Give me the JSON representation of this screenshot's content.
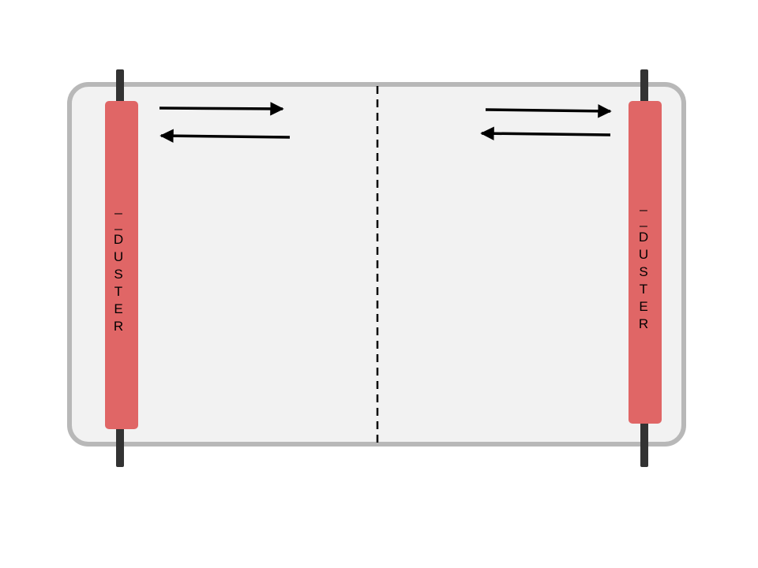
{
  "board": {
    "fill": "#f2f2f2",
    "border_color": "#b8b8b8",
    "divider_color": "#000000"
  },
  "dusters": [
    {
      "id": "left",
      "marks": [
        "_",
        "_"
      ],
      "letters": [
        "D",
        "U",
        "S",
        "T",
        "E",
        "R"
      ]
    },
    {
      "id": "right",
      "marks": [
        "_",
        "_"
      ],
      "letters": [
        "D",
        "U",
        "S",
        "T",
        "E",
        "R"
      ]
    }
  ],
  "duster_style": {
    "body_color": "#e06666",
    "rod_color": "#333333",
    "text_color": "#000000"
  },
  "arrows": {
    "left_group": [
      "right",
      "left"
    ],
    "right_group": [
      "right",
      "left"
    ],
    "color": "#000000"
  }
}
